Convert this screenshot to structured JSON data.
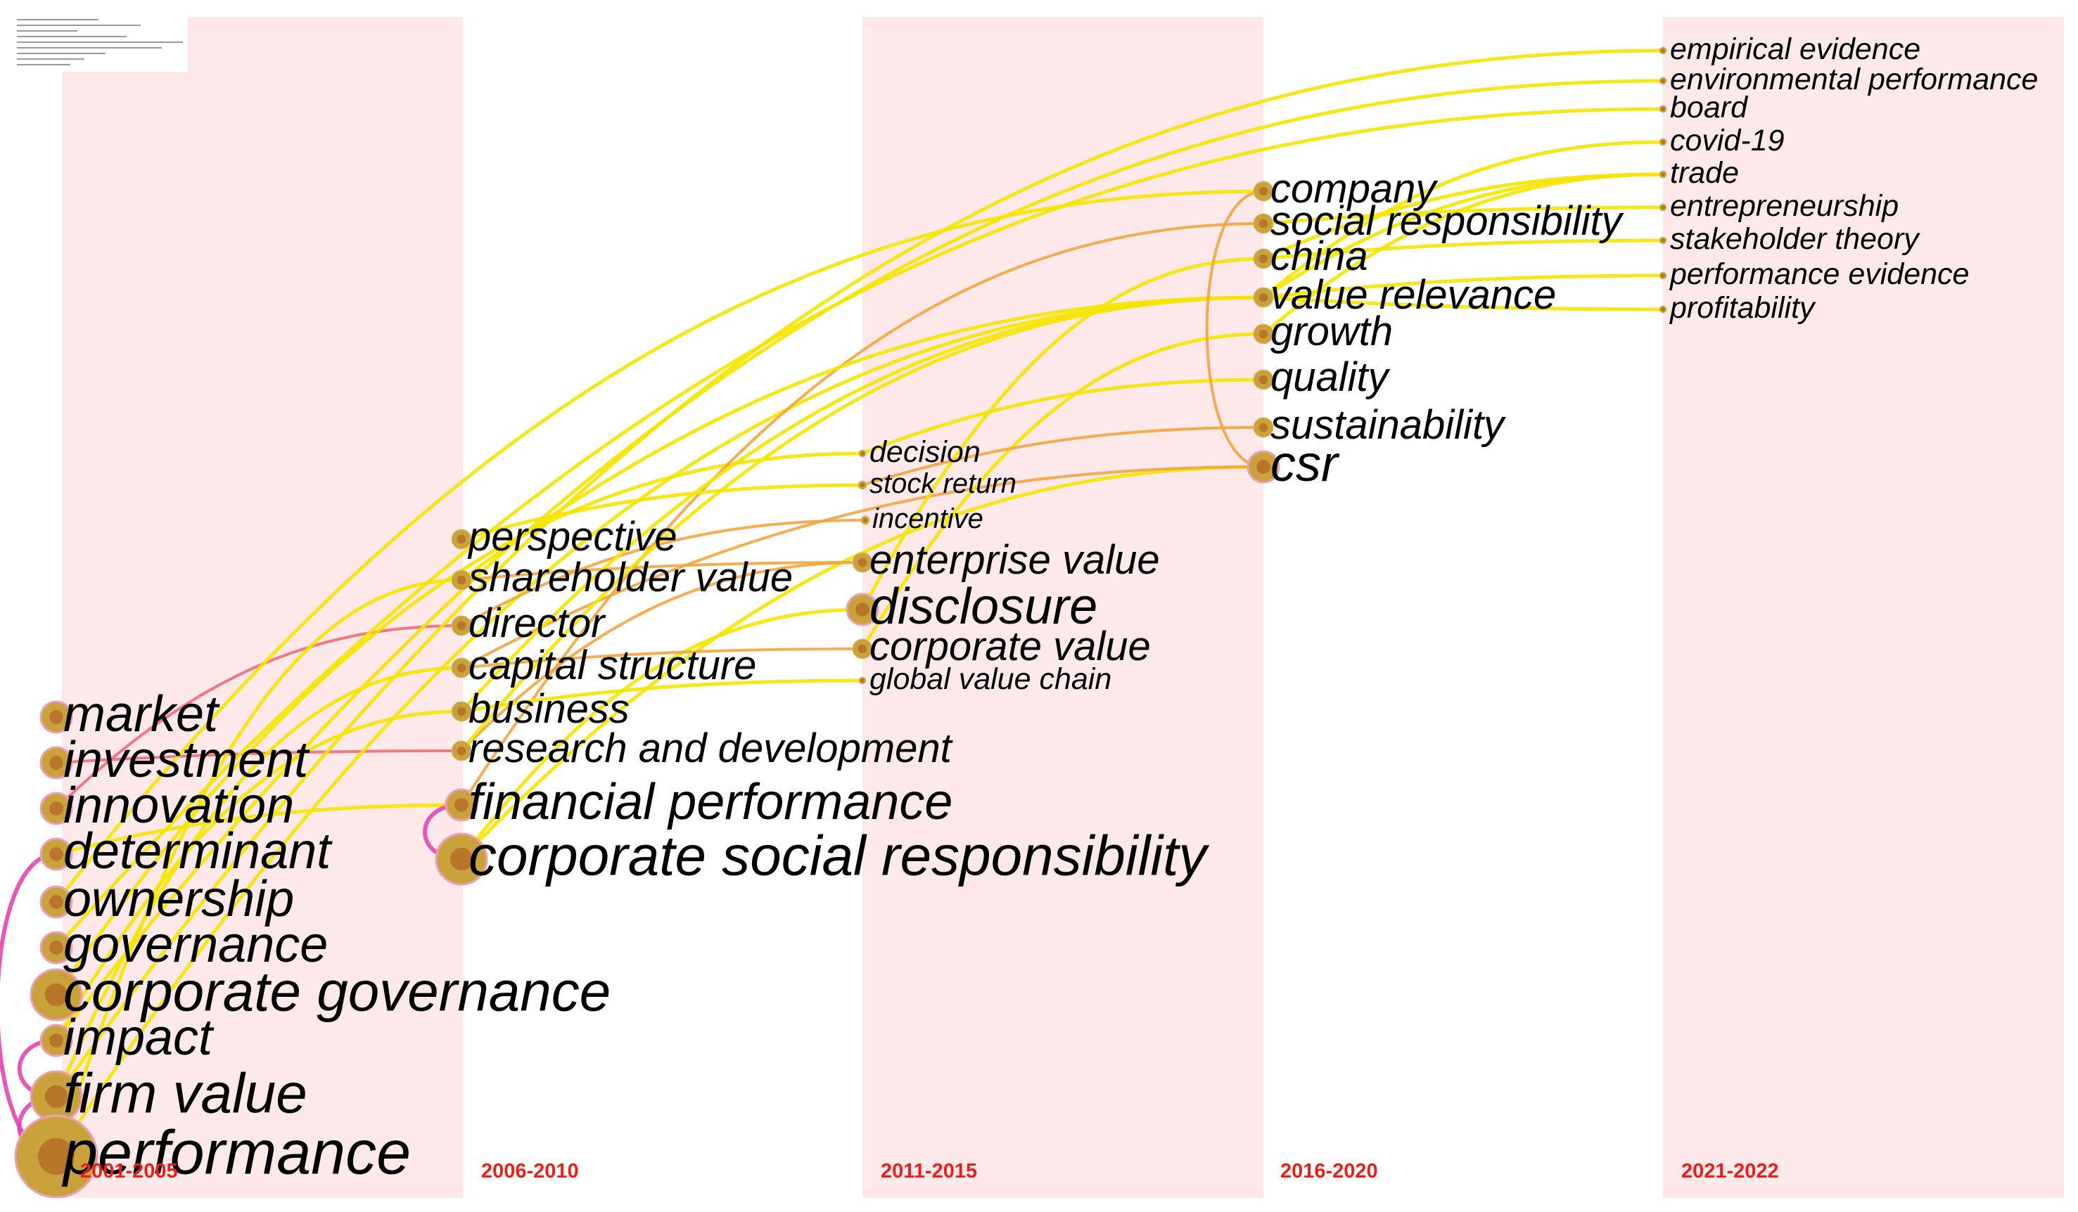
{
  "colors": {
    "band": "#fde8ea",
    "link_recent": "#f5e400",
    "link_mid": "#f4a43c",
    "link_old": "#f06a7a",
    "link_burst": "#e246b0",
    "node_fill": "#c9a23c",
    "node_core": "#b8762a",
    "period_label": "#e8201c"
  },
  "periods": [
    {
      "label": "2001-2005"
    },
    {
      "label": "2006-2010"
    },
    {
      "label": "2011-2015"
    },
    {
      "label": "2016-2020"
    },
    {
      "label": "2021-2022"
    }
  ],
  "keywords": [
    {
      "id": "market",
      "label": "market",
      "period": 0,
      "size": "l"
    },
    {
      "id": "investment",
      "label": "investment",
      "period": 0,
      "size": "l"
    },
    {
      "id": "innovation",
      "label": "innovation",
      "period": 0,
      "size": "l"
    },
    {
      "id": "determinant",
      "label": "determinant",
      "period": 0,
      "size": "l"
    },
    {
      "id": "ownership",
      "label": "ownership",
      "period": 0,
      "size": "l"
    },
    {
      "id": "governance",
      "label": "governance",
      "period": 0,
      "size": "l"
    },
    {
      "id": "corporate-governance",
      "label": "corporate governance",
      "period": 0,
      "size": "xl"
    },
    {
      "id": "impact",
      "label": "impact",
      "period": 0,
      "size": "l"
    },
    {
      "id": "firm-value",
      "label": "firm value",
      "period": 0,
      "size": "xl"
    },
    {
      "id": "performance",
      "label": "performance",
      "period": 0,
      "size": "xxl"
    },
    {
      "id": "perspective",
      "label": "perspective",
      "period": 1,
      "size": "m"
    },
    {
      "id": "shareholder-value",
      "label": "shareholder value",
      "period": 1,
      "size": "m"
    },
    {
      "id": "director",
      "label": "director",
      "period": 1,
      "size": "m"
    },
    {
      "id": "capital-structure",
      "label": "capital structure",
      "period": 1,
      "size": "m"
    },
    {
      "id": "business",
      "label": "business",
      "period": 1,
      "size": "m"
    },
    {
      "id": "research-and-development",
      "label": "research and development",
      "period": 1,
      "size": "m"
    },
    {
      "id": "financial-performance",
      "label": "financial performance",
      "period": 1,
      "size": "l"
    },
    {
      "id": "corporate-social-responsibility",
      "label": "corporate social responsibility",
      "period": 1,
      "size": "xl"
    },
    {
      "id": "decision",
      "label": "decision",
      "period": 2,
      "size": "s"
    },
    {
      "id": "stock-return",
      "label": "stock return",
      "period": 2,
      "size": "xs"
    },
    {
      "id": "incentive",
      "label": "incentive",
      "period": 2,
      "size": "xs"
    },
    {
      "id": "enterprise-value",
      "label": "enterprise value",
      "period": 2,
      "size": "m"
    },
    {
      "id": "disclosure",
      "label": "disclosure",
      "period": 2,
      "size": "l"
    },
    {
      "id": "corporate-value",
      "label": "corporate value",
      "period": 2,
      "size": "m"
    },
    {
      "id": "global-value-chain",
      "label": "global value chain",
      "period": 2,
      "size": "s"
    },
    {
      "id": "company",
      "label": "company",
      "period": 3,
      "size": "m"
    },
    {
      "id": "social-responsibility",
      "label": "social responsibility",
      "period": 3,
      "size": "m"
    },
    {
      "id": "china",
      "label": "china",
      "period": 3,
      "size": "m"
    },
    {
      "id": "value-relevance",
      "label": "value relevance",
      "period": 3,
      "size": "m"
    },
    {
      "id": "growth",
      "label": "growth",
      "period": 3,
      "size": "m"
    },
    {
      "id": "quality",
      "label": "quality",
      "period": 3,
      "size": "m"
    },
    {
      "id": "sustainability",
      "label": "sustainability",
      "period": 3,
      "size": "m"
    },
    {
      "id": "csr",
      "label": "csr",
      "period": 3,
      "size": "l"
    },
    {
      "id": "empirical-evidence",
      "label": "empirical evidence",
      "period": 4,
      "size": "s"
    },
    {
      "id": "environmental-performance",
      "label": "environmental performance",
      "period": 4,
      "size": "s"
    },
    {
      "id": "board",
      "label": "board",
      "period": 4,
      "size": "s"
    },
    {
      "id": "covid-19",
      "label": "covid-19",
      "period": 4,
      "size": "s"
    },
    {
      "id": "trade",
      "label": "trade",
      "period": 4,
      "size": "s"
    },
    {
      "id": "entrepreneurship",
      "label": "entrepreneurship",
      "period": 4,
      "size": "s"
    },
    {
      "id": "stakeholder-theory",
      "label": "stakeholder theory",
      "period": 4,
      "size": "s"
    },
    {
      "id": "performance-evidence",
      "label": "performance evidence",
      "period": 4,
      "size": "s"
    },
    {
      "id": "profitability",
      "label": "profitability",
      "period": 4,
      "size": "s"
    }
  ],
  "links": [
    {
      "from": "performance",
      "to": "firm-value",
      "tone": "burst"
    },
    {
      "from": "performance",
      "to": "determinant",
      "tone": "burst"
    },
    {
      "from": "firm-value",
      "to": "impact",
      "tone": "burst"
    },
    {
      "from": "investment",
      "to": "research-and-development",
      "tone": "old"
    },
    {
      "from": "innovation",
      "to": "director",
      "tone": "old"
    },
    {
      "from": "determinant",
      "to": "financial-performance",
      "tone": "recent"
    },
    {
      "from": "impact",
      "to": "business",
      "tone": "recent"
    },
    {
      "from": "firm-value",
      "to": "capital-structure",
      "tone": "recent"
    },
    {
      "from": "performance",
      "to": "shareholder-value",
      "tone": "recent"
    },
    {
      "from": "performance",
      "to": "value-relevance",
      "tone": "recent"
    },
    {
      "from": "firm-value",
      "to": "empirical-evidence",
      "tone": "recent"
    },
    {
      "from": "impact",
      "to": "environmental-performance",
      "tone": "recent"
    },
    {
      "from": "governance",
      "to": "board",
      "tone": "recent"
    },
    {
      "from": "corporate-governance",
      "to": "decision",
      "tone": "recent"
    },
    {
      "from": "ownership",
      "to": "company",
      "tone": "recent"
    },
    {
      "from": "financial-performance",
      "to": "corporate-social-responsibility",
      "tone": "burst"
    },
    {
      "from": "corporate-social-responsibility",
      "to": "disclosure",
      "tone": "recent"
    },
    {
      "from": "corporate-social-responsibility",
      "to": "csr",
      "tone": "recent"
    },
    {
      "from": "financial-performance",
      "to": "social-responsibility",
      "tone": "mid"
    },
    {
      "from": "research-and-development",
      "to": "enterprise-value",
      "tone": "mid"
    },
    {
      "from": "director",
      "to": "incentive",
      "tone": "mid"
    },
    {
      "from": "capital-structure",
      "to": "corporate-value",
      "tone": "mid"
    },
    {
      "from": "business",
      "to": "global-value-chain",
      "tone": "recent"
    },
    {
      "from": "shareholder-value",
      "to": "value-relevance",
      "tone": "recent"
    },
    {
      "from": "perspective",
      "to": "stock-return",
      "tone": "recent"
    },
    {
      "from": "shareholder-value",
      "to": "enterprise-value",
      "tone": "mid"
    },
    {
      "from": "capital-structure",
      "to": "csr",
      "tone": "mid"
    },
    {
      "from": "disclosure",
      "to": "china",
      "tone": "recent"
    },
    {
      "from": "corporate-value",
      "to": "growth",
      "tone": "recent"
    },
    {
      "from": "decision",
      "to": "quality",
      "tone": "recent"
    },
    {
      "from": "stock-return",
      "to": "sustainability",
      "tone": "mid"
    },
    {
      "from": "business",
      "to": "value-relevance",
      "tone": "recent"
    },
    {
      "from": "research-and-development",
      "to": "value-relevance",
      "tone": "recent"
    },
    {
      "from": "company",
      "to": "csr",
      "tone": "mid"
    },
    {
      "from": "value-relevance",
      "to": "trade",
      "tone": "recent"
    },
    {
      "from": "value-relevance",
      "to": "profitability",
      "tone": "recent"
    },
    {
      "from": "value-relevance",
      "to": "performance-evidence",
      "tone": "recent"
    },
    {
      "from": "china",
      "to": "stakeholder-theory",
      "tone": "recent"
    },
    {
      "from": "china",
      "to": "trade",
      "tone": "recent"
    },
    {
      "from": "growth",
      "to": "trade",
      "tone": "recent"
    },
    {
      "from": "social-responsibility",
      "to": "entrepreneurship",
      "tone": "recent"
    },
    {
      "from": "value-relevance",
      "to": "covid-19",
      "tone": "recent"
    }
  ]
}
